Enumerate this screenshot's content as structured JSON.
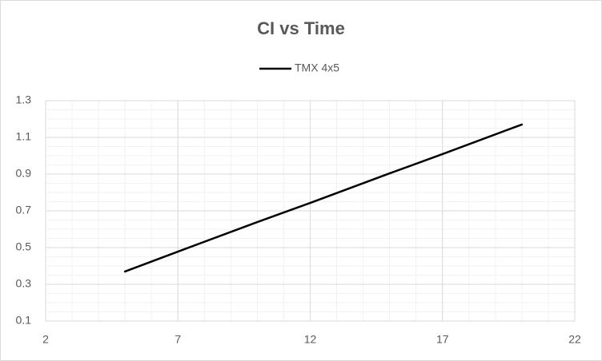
{
  "chart_data": {
    "type": "line",
    "title": "CI vs Time",
    "series": [
      {
        "name": "TMX 4x5",
        "color": "#000000",
        "x": [
          5,
          7,
          10,
          12,
          15,
          17,
          20
        ],
        "values": [
          0.37,
          0.478,
          0.639,
          0.743,
          0.904,
          1.009,
          1.17
        ]
      }
    ],
    "xlim": [
      2,
      22
    ],
    "xticks": [
      2,
      7,
      12,
      17,
      22
    ],
    "ylim": [
      0.1,
      1.3
    ],
    "yticks": [
      0.1,
      0.3,
      0.5,
      0.7,
      0.9,
      1.1,
      1.3
    ],
    "grid": true,
    "minor_grid": {
      "x": 1,
      "y": 0.05
    },
    "legend": "top"
  }
}
